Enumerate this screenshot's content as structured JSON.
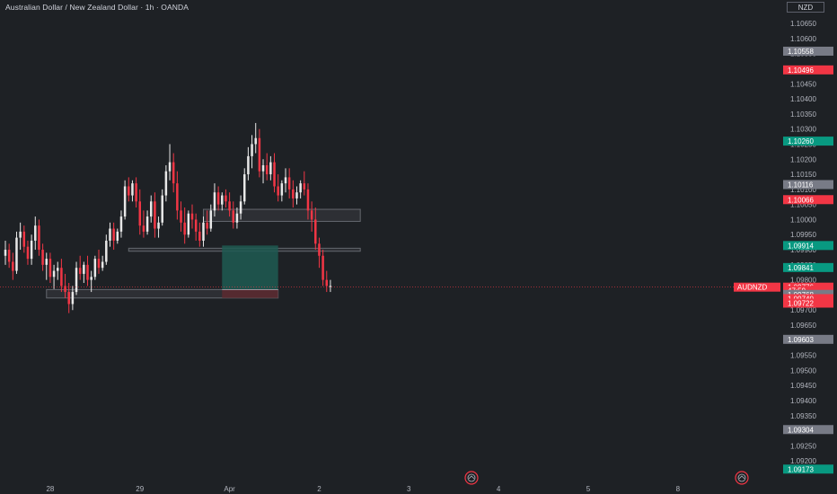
{
  "header": {
    "title": "Australian Dollar / New Zealand Dollar · 1h · OANDA",
    "currency": "NZD"
  },
  "colors": {
    "background": "#1e2125",
    "up": "#e8e8e8",
    "down": "#f23645",
    "zone": "#3a3d42",
    "profit": "#1f5a52",
    "loss": "#5a2a30",
    "green_tag": "#089981",
    "red_tag": "#f23645",
    "gray_tag": "#787b86"
  },
  "chart_data": {
    "type": "candlestick",
    "symbol": "AUDNZD",
    "ylim": [
      1.0915,
      1.1068
    ],
    "y_ticks": [
      "1.10650",
      "1.10600",
      "1.10550",
      "1.10500",
      "1.10450",
      "1.10400",
      "1.10350",
      "1.10300",
      "1.10250",
      "1.10200",
      "1.10150",
      "1.10100",
      "1.10050",
      "1.10000",
      "1.09950",
      "1.09900",
      "1.09850",
      "1.09800",
      "1.09750",
      "1.09700",
      "1.09650",
      "1.09600",
      "1.09550",
      "1.09500",
      "1.09450",
      "1.09400",
      "1.09350",
      "1.09300",
      "1.09250",
      "1.09200"
    ],
    "x_labels": [
      {
        "label": "28",
        "index": 12
      },
      {
        "label": "29",
        "index": 36
      },
      {
        "label": "Apr",
        "index": 60
      },
      {
        "label": "2",
        "index": 84
      },
      {
        "label": "3",
        "index": 108
      },
      {
        "label": "4",
        "index": 132
      },
      {
        "label": "5",
        "index": 156
      },
      {
        "label": "8",
        "index": 180
      }
    ],
    "candles": [
      [
        1.0988,
        1.0993,
        1.0985,
        1.099
      ],
      [
        1.099,
        1.0992,
        1.0984,
        1.0986
      ],
      [
        1.0986,
        1.0989,
        1.098,
        1.0983
      ],
      [
        1.0983,
        1.0996,
        1.0982,
        1.0994
      ],
      [
        1.0994,
        1.0999,
        1.099,
        1.0996
      ],
      [
        1.0996,
        1.0998,
        1.0989,
        1.0991
      ],
      [
        1.0991,
        1.0993,
        1.0985,
        1.0987
      ],
      [
        1.0987,
        1.0995,
        1.0985,
        1.0993
      ],
      [
        1.0993,
        1.1001,
        1.099,
        1.0998
      ],
      [
        1.0998,
        1.1,
        1.0988,
        1.099
      ],
      [
        1.099,
        1.0992,
        1.0983,
        1.0985
      ],
      [
        1.0985,
        1.0989,
        1.098,
        1.0987
      ],
      [
        1.0987,
        1.0989,
        1.0979,
        1.0981
      ],
      [
        1.0981,
        1.0985,
        1.0977,
        1.0983
      ],
      [
        1.0983,
        1.0986,
        1.098,
        1.0984
      ],
      [
        1.0984,
        1.0987,
        1.0976,
        1.0978
      ],
      [
        1.0978,
        1.0982,
        1.0974,
        1.0976
      ],
      [
        1.0976,
        1.0979,
        1.0969,
        1.0972
      ],
      [
        1.0972,
        1.0978,
        1.097,
        1.0976
      ],
      [
        1.0976,
        1.0986,
        1.0975,
        1.0984
      ],
      [
        1.0984,
        1.0988,
        1.098,
        1.0982
      ],
      [
        1.0982,
        1.0986,
        1.0979,
        1.0985
      ],
      [
        1.0985,
        1.0988,
        1.0978,
        1.098
      ],
      [
        1.098,
        1.0983,
        1.0976,
        1.0981
      ],
      [
        1.0981,
        1.0988,
        1.098,
        1.0987
      ],
      [
        1.0987,
        1.099,
        1.0982,
        1.0984
      ],
      [
        1.0984,
        1.0988,
        1.0983,
        1.0986
      ],
      [
        1.0986,
        1.0995,
        1.0985,
        1.0993
      ],
      [
        1.0993,
        1.0999,
        1.0991,
        1.0997
      ],
      [
        1.0997,
        1.0999,
        1.099,
        1.0993
      ],
      [
        1.0993,
        1.0997,
        1.0992,
        1.0996
      ],
      [
        1.0996,
        1.1003,
        1.0994,
        1.1001
      ],
      [
        1.1001,
        1.1013,
        1.1,
        1.1011
      ],
      [
        1.1011,
        1.1014,
        1.1006,
        1.1008
      ],
      [
        1.1008,
        1.1013,
        1.1006,
        1.1012
      ],
      [
        1.1012,
        1.1014,
        1.1004,
        1.1006
      ],
      [
        1.1006,
        1.101,
        1.0995,
        1.0998
      ],
      [
        1.0998,
        1.1003,
        1.0994,
        1.0996
      ],
      [
        1.0996,
        1.1003,
        1.0995,
        1.1001
      ],
      [
        1.1001,
        1.1008,
        1.0999,
        1.1006
      ],
      [
        1.1006,
        1.1009,
        1.0994,
        1.0997
      ],
      [
        1.0997,
        1.1001,
        1.0994,
        1.0999
      ],
      [
        1.0999,
        1.101,
        1.0998,
        1.1008
      ],
      [
        1.1008,
        1.1018,
        1.1006,
        1.1016
      ],
      [
        1.1016,
        1.1025,
        1.1013,
        1.1019
      ],
      [
        1.1019,
        1.1022,
        1.1009,
        1.1012
      ],
      [
        1.1012,
        1.1016,
        1.1,
        1.1003
      ],
      [
        1.1003,
        1.1006,
        1.0996,
        1.0999
      ],
      [
        1.0999,
        1.1004,
        1.0992,
        1.0995
      ],
      [
        1.0995,
        1.1003,
        1.0994,
        1.1002
      ],
      [
        1.1002,
        1.1005,
        1.0997,
        1.1
      ],
      [
        1.1,
        1.1002,
        1.0993,
        1.0996
      ],
      [
        1.0996,
        1.0999,
        1.0991,
        1.0993
      ],
      [
        1.0993,
        1.1001,
        1.0991,
        1.0999
      ],
      [
        1.0999,
        1.1003,
        1.0995,
        1.0997
      ],
      [
        1.0997,
        1.1005,
        1.0996,
        1.1003
      ],
      [
        1.1003,
        1.1012,
        1.1001,
        1.1009
      ],
      [
        1.1009,
        1.1011,
        1.1003,
        1.1005
      ],
      [
        1.1005,
        1.1009,
        1.1003,
        1.1008
      ],
      [
        1.1008,
        1.101,
        1.1004,
        1.1006
      ],
      [
        1.1006,
        1.1009,
        1.1001,
        1.1003
      ],
      [
        1.1003,
        1.1006,
        1.0997,
        1.0999
      ],
      [
        1.0999,
        1.1004,
        1.0997,
        1.1002
      ],
      [
        1.1002,
        1.1008,
        1.1,
        1.1006
      ],
      [
        1.1006,
        1.1017,
        1.1005,
        1.1015
      ],
      [
        1.1015,
        1.1024,
        1.1013,
        1.1021
      ],
      [
        1.1021,
        1.1028,
        1.1017,
        1.1025
      ],
      [
        1.1025,
        1.1032,
        1.1022,
        1.1027
      ],
      [
        1.1027,
        1.103,
        1.1014,
        1.1016
      ],
      [
        1.1016,
        1.102,
        1.1012,
        1.1018
      ],
      [
        1.1018,
        1.1022,
        1.1013,
        1.1015
      ],
      [
        1.1015,
        1.1021,
        1.1013,
        1.1019
      ],
      [
        1.1019,
        1.1022,
        1.1009,
        1.1011
      ],
      [
        1.1011,
        1.1015,
        1.1006,
        1.1008
      ],
      [
        1.1008,
        1.1013,
        1.1006,
        1.1012
      ],
      [
        1.1012,
        1.1017,
        1.1009,
        1.1014
      ],
      [
        1.1014,
        1.1017,
        1.1007,
        1.101
      ],
      [
        1.101,
        1.1013,
        1.1004,
        1.1007
      ],
      [
        1.1007,
        1.1011,
        1.1005,
        1.1009
      ],
      [
        1.1009,
        1.1013,
        1.1007,
        1.1012
      ],
      [
        1.1012,
        1.1016,
        1.1008,
        1.101
      ],
      [
        1.101,
        1.1012,
        1.1,
        1.1003
      ],
      [
        1.1003,
        1.1006,
        1.0996,
        1.1
      ],
      [
        1.1,
        1.1004,
        1.099,
        1.0992
      ],
      [
        1.0992,
        1.0994,
        1.0984,
        1.0988
      ],
      [
        1.0988,
        1.099,
        1.0978,
        1.098
      ],
      [
        1.098,
        1.0983,
        1.0976,
        1.0978
      ],
      [
        1.0978,
        1.098,
        1.0976,
        1.0978
      ]
    ],
    "zones": [
      {
        "name": "upper-zone",
        "start": 53,
        "end": 95,
        "low": 1.09994,
        "high": 1.10034
      },
      {
        "name": "middle-zone",
        "start": 33,
        "end": 95,
        "low": 1.09895,
        "high": 1.09905
      },
      {
        "name": "lower-zone",
        "start": 11,
        "end": 73,
        "low": 1.0974,
        "high": 1.09768
      }
    ],
    "position": {
      "start": 58,
      "end": 73,
      "target": 1.09914,
      "entry": 1.09768,
      "stop": 1.0974
    },
    "last_price": 1.09776,
    "price_tags": [
      {
        "value": "1.10558",
        "kind": "gray",
        "price": 1.10558
      },
      {
        "value": "1.10496",
        "kind": "red",
        "price": 1.10496
      },
      {
        "value": "1.10260",
        "kind": "green",
        "price": 1.1026
      },
      {
        "value": "1.10116",
        "kind": "gray",
        "price": 1.10116
      },
      {
        "value": "1.10066",
        "kind": "red",
        "price": 1.10066
      },
      {
        "value": "1.09914",
        "kind": "green",
        "price": 1.09914
      },
      {
        "value": "1.09841",
        "kind": "green",
        "price": 1.09841
      },
      {
        "value": "1.09776",
        "kind": "red",
        "price": 1.09776
      },
      {
        "value": "47:59",
        "kind": "red",
        "price": 1.09765
      },
      {
        "value": "1.09768",
        "kind": "gray",
        "price": 1.09752
      },
      {
        "value": "1.09740",
        "kind": "red",
        "price": 1.09738
      },
      {
        "value": "1.09722",
        "kind": "red",
        "price": 1.09723
      },
      {
        "value": "1.09603",
        "kind": "gray",
        "price": 1.09603
      },
      {
        "value": "1.09304",
        "kind": "gray",
        "price": 1.09304
      },
      {
        "value": "1.09173",
        "kind": "green",
        "price": 1.09173
      }
    ],
    "symbol_tag": "AUDNZD"
  }
}
